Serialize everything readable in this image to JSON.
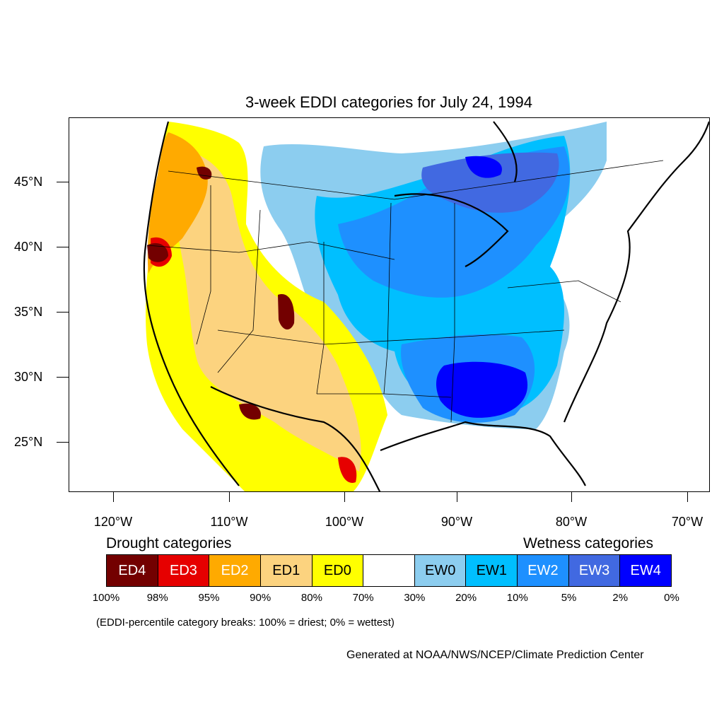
{
  "title": "3-week EDDI categories for July 24, 1994",
  "axes": {
    "lat_labels": [
      "45°N",
      "40°N",
      "35°N",
      "30°N",
      "25°N"
    ],
    "lon_labels": [
      "120°W",
      "110°W",
      "100°W",
      "90°W",
      "80°W",
      "70°W"
    ]
  },
  "legend": {
    "drought_heading": "Drought categories",
    "wetness_heading": "Wetness categories",
    "categories": [
      {
        "label": "ED4",
        "color": "#730000",
        "text_color": "#ffffff"
      },
      {
        "label": "ED3",
        "color": "#e60000",
        "text_color": "#ffffff"
      },
      {
        "label": "ED2",
        "color": "#ffaa00",
        "text_color": "#ffffff"
      },
      {
        "label": "ED1",
        "color": "#fcd37f",
        "text_color": "#000000"
      },
      {
        "label": "ED0",
        "color": "#ffff00",
        "text_color": "#000000"
      },
      {
        "label": "",
        "color": "#ffffff",
        "text_color": "#000000"
      },
      {
        "label": "EW0",
        "color": "#8ccdef",
        "text_color": "#000000"
      },
      {
        "label": "EW1",
        "color": "#00bfff",
        "text_color": "#000000"
      },
      {
        "label": "EW2",
        "color": "#1e90ff",
        "text_color": "#ffffff"
      },
      {
        "label": "EW3",
        "color": "#4169e1",
        "text_color": "#ffffff"
      },
      {
        "label": "EW4",
        "color": "#0000ff",
        "text_color": "#ffffff"
      }
    ],
    "percentiles": [
      "100%",
      "98%",
      "95%",
      "90%",
      "80%",
      "70%",
      "30%",
      "20%",
      "10%",
      "5%",
      "2%",
      "0%"
    ]
  },
  "note": "(EDDI-percentile category breaks: 100% = driest; 0% = wettest)",
  "credit": "Generated at NOAA/NWS/NCEP/Climate Prediction Center"
}
